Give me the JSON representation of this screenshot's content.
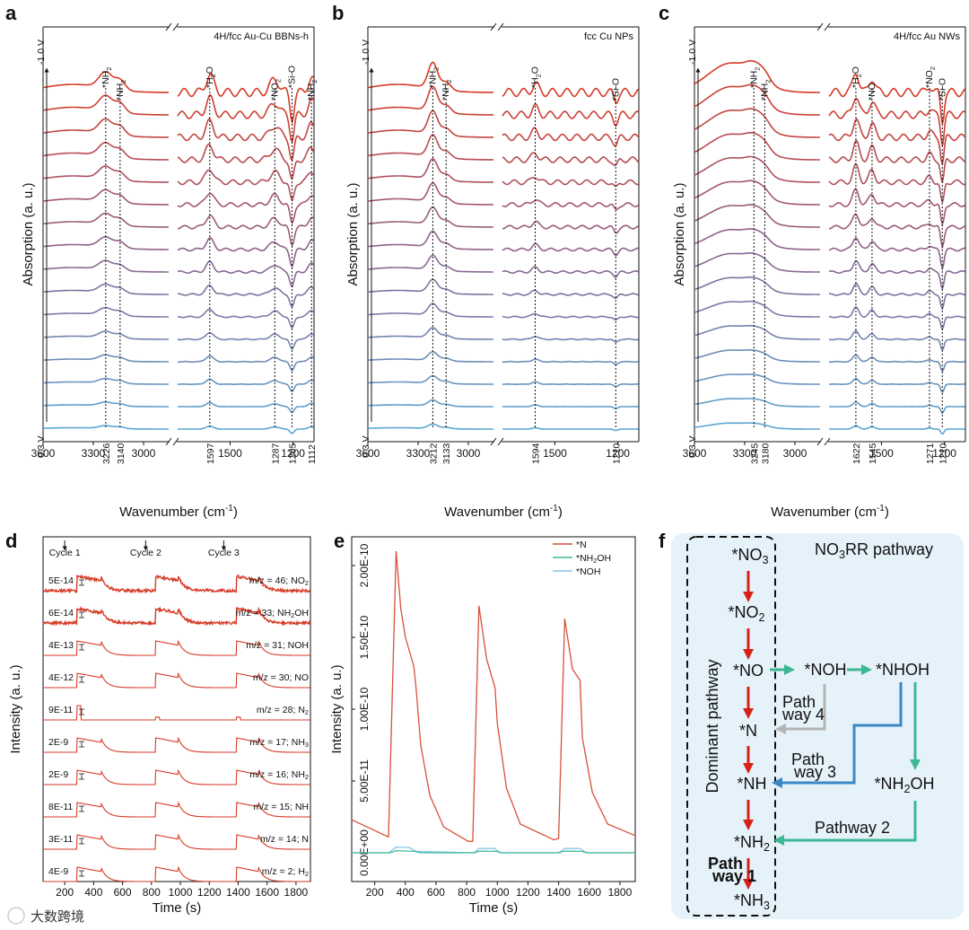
{
  "watermark": "大数跨境",
  "chart_data": [
    {
      "panel": "a",
      "type": "line",
      "title": "4H/fcc Au-Cu BBNs-h",
      "xlabel": "Wavenumber (cm",
      "xlabel_sup": "-1",
      "xlabel_end": ")",
      "ylabel": "Absorption (a. u.)",
      "x_ticks": [
        "3600",
        "3300",
        "3000",
        "1500",
        "1200"
      ],
      "x_reversed": true,
      "axis_break": true,
      "potential_top": "-1.0 V",
      "potential_bottom": "0.3 V",
      "n_traces": 16,
      "peaks": [
        {
          "value": "3226",
          "species": "*NH",
          "sub": "2"
        },
        {
          "value": "3140",
          "species": "*NH",
          "sub": "2"
        },
        {
          "value": "1597",
          "species": "*H",
          "sub": "2",
          "tail": "O"
        },
        {
          "value": "1287",
          "species": "*NO",
          "sub": "2"
        },
        {
          "value": "1205",
          "species": "*Si-O",
          "sub": ""
        },
        {
          "value": "1112",
          "species": "*NH",
          "sub": "2"
        }
      ]
    },
    {
      "panel": "b",
      "type": "line",
      "title": "fcc Cu NPs",
      "xlabel": "Wavenumber (cm",
      "xlabel_sup": "-1",
      "xlabel_end": ")",
      "ylabel": "Absorption (a. u.)",
      "x_ticks": [
        "3600",
        "3300",
        "3000",
        "1500",
        "1200"
      ],
      "x_reversed": true,
      "axis_break": true,
      "potential_top": "-1.0 V",
      "potential_bottom": "0.3 V",
      "n_traces": 16,
      "peaks": [
        {
          "value": "3212",
          "species": "*NH",
          "sub": "2"
        },
        {
          "value": "3133",
          "species": "*NH",
          "sub": "2"
        },
        {
          "value": "1594",
          "species": "*H",
          "sub": "2",
          "tail": "O"
        },
        {
          "value": "1210",
          "species": "*Si-O",
          "sub": ""
        }
      ]
    },
    {
      "panel": "c",
      "type": "line",
      "title": "4H/fcc Au NWs",
      "xlabel": "Wavenumber (cm",
      "xlabel_sup": "-1",
      "xlabel_end": ")",
      "ylabel": "Absorption (a. u.)",
      "x_ticks": [
        "3600",
        "3300",
        "3000",
        "1500",
        "1200"
      ],
      "x_reversed": true,
      "axis_break": true,
      "potential_top": "-1.0 V",
      "potential_bottom": "0.3 V",
      "n_traces": 16,
      "peaks": [
        {
          "value": "3245",
          "species": "*NH",
          "sub": "2"
        },
        {
          "value": "3180",
          "species": "*NH",
          "sub": "2"
        },
        {
          "value": "1622",
          "species": "*H",
          "sub": "2",
          "tail": "O"
        },
        {
          "value": "1545",
          "species": "*NO",
          "sub": ""
        },
        {
          "value": "1271",
          "species": "*NO",
          "sub": "2"
        },
        {
          "value": "1210",
          "species": "*Si-O",
          "sub": ""
        }
      ]
    },
    {
      "panel": "d",
      "type": "line",
      "xlabel": "Time (s)",
      "ylabel": "Intensity (a. u.)",
      "x_ticks": [
        200,
        400,
        600,
        800,
        1000,
        1200,
        1400,
        1600,
        1800
      ],
      "xlim": [
        50,
        1900
      ],
      "cycles": [
        {
          "label": "Cycle 1",
          "t": 200
        },
        {
          "label": "Cycle 2",
          "t": 760
        },
        {
          "label": "Cycle 3",
          "t": 1300
        }
      ],
      "pulses": [
        [
          285,
          450
        ],
        [
          830,
          985
        ],
        [
          1390,
          1540
        ]
      ],
      "series": [
        {
          "scale": "5E-14",
          "mz": "m/z = 46; NO",
          "sub": "2",
          "noisy": true
        },
        {
          "scale": "6E-14",
          "mz": "m/z = 33; NH",
          "sub": "2",
          "tail": "OH",
          "noisy": true
        },
        {
          "scale": "4E-13",
          "mz": "m/z = 31; NOH",
          "sub": ""
        },
        {
          "scale": "4E-12",
          "mz": "m/z = 30; NO",
          "sub": ""
        },
        {
          "scale": "9E-11",
          "mz": "m/z = 28; N",
          "sub": "2"
        },
        {
          "scale": "2E-9",
          "mz": "m/z = 17; NH",
          "sub": "3"
        },
        {
          "scale": "2E-9",
          "mz": "m/z = 16; NH",
          "sub": "2"
        },
        {
          "scale": "8E-11",
          "mz": "m/z = 15; NH",
          "sub": ""
        },
        {
          "scale": "3E-11",
          "mz": "m/z = 14; N",
          "sub": ""
        },
        {
          "scale": "4E-9",
          "mz": "m/z = 2; H",
          "sub": "2"
        }
      ]
    },
    {
      "panel": "e",
      "type": "line",
      "xlabel": "Time (s)",
      "ylabel": "Intensity (a. u.)",
      "x_ticks": [
        200,
        400,
        600,
        800,
        1000,
        1200,
        1400,
        1600,
        1800
      ],
      "xlim": [
        50,
        1900
      ],
      "ylim": [
        -2e-11,
        2.2e-10
      ],
      "y_ticks": [
        {
          "v": 0,
          "label": "0.00E+00"
        },
        {
          "v": 5e-11,
          "label": "5.00E-11"
        },
        {
          "v": 1e-10,
          "label": "1.00E-10"
        },
        {
          "v": 1.5e-10,
          "label": "1.50E-10"
        },
        {
          "v": 2e-10,
          "label": "2.00E-10"
        }
      ],
      "legend": [
        {
          "label": "*N",
          "sub": "",
          "color": "#d9503a"
        },
        {
          "label": "*NH",
          "sub": "2",
          "tail": "OH",
          "color": "#3dba9a"
        },
        {
          "label": "*NOH",
          "sub": "",
          "color": "#8ac4e6"
        }
      ],
      "series": [
        {
          "name": "*N",
          "color": "#d9503a",
          "points": [
            [
              50,
              2.3e-11
            ],
            [
              290,
              1.1e-11
            ],
            [
              340,
              2.1e-10
            ],
            [
              370,
              1.7e-10
            ],
            [
              400,
              1.5e-10
            ],
            [
              455,
              1.3e-10
            ],
            [
              470,
              1.15e-10
            ],
            [
              500,
              7.5e-11
            ],
            [
              560,
              4e-11
            ],
            [
              650,
              1.8e-11
            ],
            [
              810,
              8e-12
            ],
            [
              840,
              8e-12
            ],
            [
              880,
              1.72e-10
            ],
            [
              930,
              1.35e-10
            ],
            [
              985,
              1.15e-10
            ],
            [
              1000,
              9e-11
            ],
            [
              1060,
              4.5e-11
            ],
            [
              1150,
              2e-11
            ],
            [
              1370,
              9e-12
            ],
            [
              1400,
              1e-11
            ],
            [
              1440,
              1.63e-10
            ],
            [
              1490,
              1.28e-10
            ],
            [
              1540,
              1.2e-10
            ],
            [
              1555,
              8e-11
            ],
            [
              1620,
              4.2e-11
            ],
            [
              1720,
              2e-11
            ],
            [
              1900,
              1.2e-11
            ]
          ]
        },
        {
          "name": "*NH2OH",
          "color": "#3dba9a",
          "points": [
            [
              50,
              0
            ],
            [
              300,
              0
            ],
            [
              340,
              1.5e-12
            ],
            [
              460,
              1e-12
            ],
            [
              500,
              0
            ],
            [
              850,
              0
            ],
            [
              880,
              1.2e-12
            ],
            [
              990,
              1e-12
            ],
            [
              1030,
              0
            ],
            [
              1400,
              0
            ],
            [
              1440,
              1.2e-12
            ],
            [
              1550,
              1e-12
            ],
            [
              1590,
              0
            ],
            [
              1900,
              0
            ]
          ]
        },
        {
          "name": "*NOH",
          "color": "#8ac4e6",
          "points": [
            [
              50,
              0
            ],
            [
              290,
              0
            ],
            [
              340,
              4e-12
            ],
            [
              430,
              3.5e-12
            ],
            [
              470,
              1e-12
            ],
            [
              850,
              0
            ],
            [
              880,
              3e-12
            ],
            [
              980,
              3e-12
            ],
            [
              1020,
              0
            ],
            [
              1400,
              0
            ],
            [
              1440,
              3e-12
            ],
            [
              1540,
              3e-12
            ],
            [
              1580,
              0
            ],
            [
              1900,
              0
            ]
          ]
        }
      ]
    },
    {
      "panel": "f",
      "type": "diagram",
      "title": "NO",
      "title_sub": "3",
      "title_tail": "RR pathway",
      "dominant_label": "Dominant pathway",
      "nodes": [
        {
          "id": "no3",
          "label": "*NO",
          "sub": "3"
        },
        {
          "id": "no2",
          "label": "*NO",
          "sub": "2"
        },
        {
          "id": "no",
          "label": "*NO",
          "sub": ""
        },
        {
          "id": "n",
          "label": "*N",
          "sub": ""
        },
        {
          "id": "nh",
          "label": "*NH",
          "sub": ""
        },
        {
          "id": "nh2",
          "label": "*NH",
          "sub": "2"
        },
        {
          "id": "nh3",
          "label": "*NH",
          "sub": "3"
        },
        {
          "id": "noh",
          "label": "*NOH",
          "sub": ""
        },
        {
          "id": "nhoh",
          "label": "*NHOH",
          "sub": ""
        },
        {
          "id": "nh2oh",
          "label": "*NH",
          "sub": "2",
          "tail": "OH"
        }
      ],
      "pathways": [
        {
          "l1": "Path",
          "l2": "way 1",
          "color": "#d62118"
        },
        {
          "l1": "Pathway 2",
          "l2": "",
          "color": "#3cb896"
        },
        {
          "l1": "Path",
          "l2": "way 3",
          "color": "#3b88c4"
        },
        {
          "l1": "Path",
          "l2": "way 4",
          "color": "#b4b4b4"
        }
      ]
    }
  ],
  "panel_letters": [
    "a",
    "b",
    "c",
    "d",
    "e",
    "f"
  ]
}
